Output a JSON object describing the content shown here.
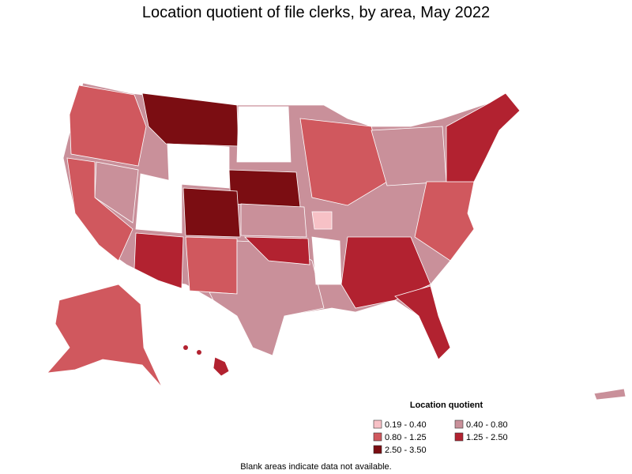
{
  "title": "Location quotient of file clerks, by area, May 2022",
  "legend": {
    "title": "Location quotient",
    "items": [
      {
        "label": "0.19 - 0.40",
        "color": "#f7c1c6"
      },
      {
        "label": "0.40 - 0.80",
        "color": "#c9909a"
      },
      {
        "label": "0.80 - 1.25",
        "color": "#d0585e"
      },
      {
        "label": "1.25 - 2.50",
        "color": "#b22230"
      },
      {
        "label": "2.50 - 3.50",
        "color": "#7b0d12"
      }
    ]
  },
  "footnote": "Blank areas indicate data not available."
}
